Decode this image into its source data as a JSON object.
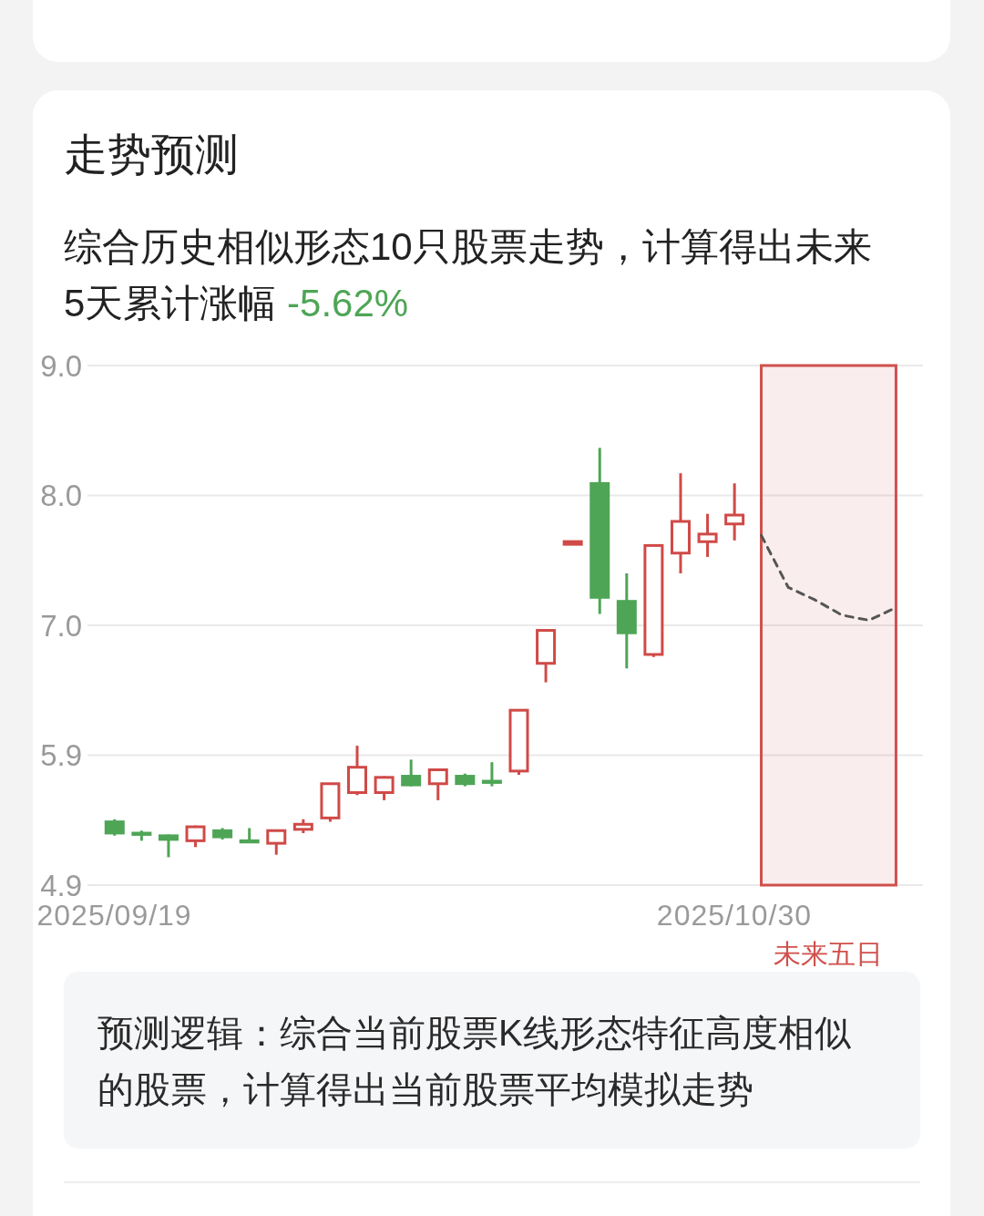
{
  "chart_data": {
    "type": "candlestick",
    "title": "走势预测",
    "subtitle": "综合历史相似形态10只股票走势，计算得出未来5天累计涨幅 -5.62%",
    "categories": [
      "2025/09/19",
      null,
      null,
      null,
      null,
      null,
      null,
      null,
      null,
      null,
      null,
      null,
      null,
      null,
      null,
      null,
      null,
      null,
      null,
      null,
      null,
      null,
      null,
      "2025/10/30",
      null,
      null,
      null,
      null,
      null,
      null
    ],
    "ohlc": [
      [
        5.41,
        5.42,
        5.29,
        5.3
      ],
      [
        5.31,
        5.33,
        5.25,
        5.3
      ],
      [
        5.3,
        5.3,
        5.12,
        5.25
      ],
      [
        5.25,
        5.37,
        5.2,
        5.36
      ],
      [
        5.34,
        5.35,
        5.26,
        5.27
      ],
      [
        5.25,
        5.35,
        5.24,
        5.24
      ],
      [
        5.23,
        5.33,
        5.14,
        5.33
      ],
      [
        5.34,
        5.42,
        5.31,
        5.38
      ],
      [
        5.43,
        5.7,
        5.4,
        5.7
      ],
      [
        5.63,
        6.0,
        5.61,
        5.83
      ],
      [
        5.63,
        5.76,
        5.57,
        5.75
      ],
      [
        5.77,
        5.89,
        5.68,
        5.68
      ],
      [
        5.7,
        5.81,
        5.57,
        5.81
      ],
      [
        5.77,
        5.78,
        5.68,
        5.69
      ],
      [
        5.72,
        5.87,
        5.68,
        5.71
      ],
      [
        5.8,
        6.28,
        5.77,
        6.28
      ],
      [
        6.65,
        6.91,
        6.5,
        6.91
      ],
      [
        7.6,
        7.6,
        7.6,
        7.6
      ],
      [
        8.08,
        8.35,
        7.04,
        7.16
      ],
      [
        7.15,
        7.36,
        6.61,
        6.88
      ],
      [
        6.72,
        7.58,
        6.7,
        7.58
      ],
      [
        7.52,
        8.15,
        7.36,
        7.77
      ],
      [
        7.61,
        7.83,
        7.49,
        7.67
      ],
      [
        7.75,
        8.07,
        7.62,
        7.82
      ],
      null,
      null,
      null,
      null,
      null,
      null
    ],
    "colors": [
      "#4ea556",
      "#4ea556",
      "#4ea556",
      "#cf4a47",
      "#4ea556",
      "#4ea556",
      "#cf4a47",
      "#cf4a47",
      "#cf4a47",
      "#cf4a47",
      "#cf4a47",
      "#4ea556",
      "#cf4a47",
      "#4ea556",
      "#4ea556",
      "#cf4a47",
      "#cf4a47",
      "#cf4a47",
      "#4ea556",
      "#4ea556",
      "#cf4a47",
      "#cf4a47",
      "#cf4a47",
      "#cf4a47",
      null,
      null,
      null,
      null,
      null,
      null
    ],
    "series": [
      {
        "type": "line",
        "name": "未来五日",
        "color": "#555555",
        "line_style": "dashed",
        "values": [
          null,
          null,
          null,
          null,
          null,
          null,
          null,
          null,
          null,
          null,
          null,
          null,
          null,
          null,
          null,
          null,
          null,
          null,
          null,
          null,
          null,
          null,
          null,
          null,
          7.66,
          7.25,
          7.15,
          7.03,
          6.99,
          7.09
        ]
      }
    ],
    "ylim": [
      4.9,
      9.0
    ],
    "yticks": [
      4.9,
      {
        "value": 5.925,
        "label": "5.9"
      },
      {
        "value": 6.95,
        "label": "7.0"
      },
      {
        "value": 7.975,
        "label": "8.0"
      },
      {
        "value": 9,
        "label": "9.0"
      }
    ],
    "grid": "y",
    "annotations": [
      "预测逻辑：综合当前股票K线形态特征高度相似的股票，计算得出当前股票平均模拟走势"
    ]
  }
}
